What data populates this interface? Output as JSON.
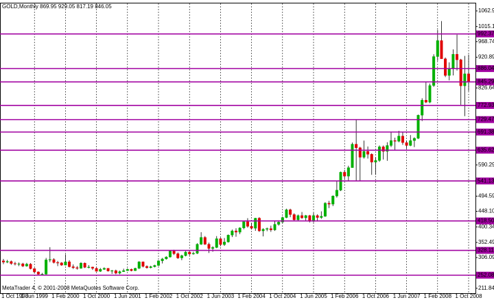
{
  "chart_data": {
    "type": "candlestick",
    "title": "GOLD,Monthly 869.95 929.05 817.19 846.05",
    "footer": "MetaTrader 4, © 2001-2008 MetaQuotes Software Corp.",
    "up_color": "#00b000",
    "down_color": "#e00000",
    "wick_color": "#000000",
    "level_color": "#a000a0",
    "ylim": [
      196.9,
      1086
    ],
    "yticks": [
      1062.99,
      1015.14,
      968.74,
      920.89,
      826.64,
      590.29,
      494.59,
      {
        "value": 448.1,
        "label": "448.10"
      },
      400.34,
      352.49,
      306.09,
      211.84
    ],
    "levels": [
      992.37,
      886.04,
      845.29,
      772.93,
      729.47,
      691.38,
      635.62,
      541.13,
      {
        "value": 418.5,
        "label": "418.50"
      },
      328.11,
      252.08
    ],
    "categories": [
      "1 Oct 1998",
      null,
      null,
      null,
      null,
      null,
      null,
      null,
      "1 Jun 1999",
      null,
      null,
      null,
      null,
      null,
      null,
      null,
      "1 Feb 2000",
      null,
      null,
      null,
      null,
      null,
      null,
      null,
      "1 Oct 2000",
      null,
      null,
      null,
      null,
      null,
      null,
      null,
      "1 Jun 2001",
      null,
      null,
      null,
      null,
      null,
      null,
      null,
      "1 Feb 2002",
      null,
      null,
      null,
      null,
      null,
      null,
      null,
      "1 Oct 2002",
      null,
      null,
      null,
      null,
      null,
      null,
      null,
      "1 Jun 2003",
      null,
      null,
      null,
      null,
      null,
      null,
      null,
      "1 Feb 2004",
      null,
      null,
      null,
      null,
      null,
      null,
      null,
      "1 Oct 2004",
      null,
      null,
      null,
      null,
      null,
      null,
      null,
      "1 Jun 2005",
      null,
      null,
      null,
      null,
      null,
      null,
      null,
      "1 Feb 2006",
      null,
      null,
      null,
      null,
      null,
      null,
      null,
      "1 Oct 2006",
      null,
      null,
      null,
      null,
      null,
      null,
      null,
      "1 Jun 2007",
      null,
      null,
      null,
      null,
      null,
      null,
      null,
      "1 Feb 2008",
      null,
      null,
      null,
      null,
      null,
      null,
      null,
      "1 Oct 2008"
    ],
    "candles": [
      [
        296,
        302,
        286,
        292
      ],
      [
        292,
        299,
        289,
        294
      ],
      [
        294,
        297,
        284,
        288
      ],
      [
        288,
        293,
        282,
        287
      ],
      [
        287,
        291,
        280,
        287
      ],
      [
        287,
        290,
        277,
        280
      ],
      [
        280,
        290,
        278,
        286
      ],
      [
        286,
        289,
        270,
        272
      ],
      [
        272,
        274,
        257,
        262
      ],
      [
        262,
        264,
        252,
        255
      ],
      [
        255,
        259,
        251,
        255
      ],
      [
        255,
        305,
        254,
        299
      ],
      [
        299,
        338,
        292,
        300
      ],
      [
        300,
        304,
        288,
        291
      ],
      [
        291,
        296,
        280,
        290
      ],
      [
        290,
        292,
        281,
        283
      ],
      [
        283,
        316,
        282,
        293
      ],
      [
        293,
        298,
        276,
        278
      ],
      [
        278,
        285,
        271,
        275
      ],
      [
        275,
        280,
        269,
        273
      ],
      [
        273,
        292,
        272,
        289
      ],
      [
        289,
        291,
        274,
        276
      ],
      [
        276,
        283,
        273,
        277
      ],
      [
        277,
        278,
        268,
        273
      ],
      [
        273,
        275,
        263,
        264
      ],
      [
        264,
        274,
        262,
        270
      ],
      [
        270,
        276,
        268,
        273
      ],
      [
        273,
        274,
        263,
        265
      ],
      [
        265,
        268,
        256,
        266
      ],
      [
        266,
        269,
        255,
        258
      ],
      [
        258,
        266,
        255,
        263
      ],
      [
        263,
        272,
        262,
        266
      ],
      [
        266,
        273,
        265,
        270
      ],
      [
        270,
        272,
        264,
        266
      ],
      [
        266,
        275,
        265,
        273
      ],
      [
        273,
        295,
        271,
        293
      ],
      [
        293,
        294,
        276,
        279
      ],
      [
        279,
        282,
        272,
        275
      ],
      [
        275,
        281,
        273,
        278
      ],
      [
        278,
        284,
        276,
        282
      ],
      [
        282,
        298,
        280,
        296
      ],
      [
        296,
        305,
        288,
        302
      ],
      [
        302,
        310,
        300,
        308
      ],
      [
        308,
        328,
        306,
        326
      ],
      [
        326,
        330,
        314,
        318
      ],
      [
        318,
        322,
        302,
        305
      ],
      [
        305,
        315,
        298,
        312
      ],
      [
        312,
        326,
        310,
        323
      ],
      [
        323,
        326,
        312,
        317
      ],
      [
        317,
        324,
        315,
        319
      ],
      [
        319,
        350,
        317,
        347
      ],
      [
        347,
        384,
        345,
        368
      ],
      [
        368,
        372,
        345,
        347
      ],
      [
        347,
        352,
        320,
        334
      ],
      [
        334,
        341,
        324,
        337
      ],
      [
        337,
        372,
        335,
        364
      ],
      [
        364,
        367,
        341,
        346
      ],
      [
        346,
        366,
        342,
        354
      ],
      [
        354,
        377,
        352,
        375
      ],
      [
        375,
        392,
        369,
        388
      ],
      [
        388,
        396,
        370,
        384
      ],
      [
        384,
        399,
        378,
        397
      ],
      [
        397,
        417,
        393,
        416
      ],
      [
        416,
        427,
        398,
        402
      ],
      [
        402,
        412,
        392,
        396
      ],
      [
        396,
        428,
        388,
        427
      ],
      [
        427,
        430,
        385,
        388
      ],
      [
        388,
        396,
        371,
        393
      ],
      [
        393,
        398,
        387,
        395
      ],
      [
        395,
        404,
        385,
        391
      ],
      [
        391,
        418,
        388,
        408
      ],
      [
        408,
        420,
        404,
        415
      ],
      [
        415,
        432,
        412,
        429
      ],
      [
        429,
        456,
        427,
        453
      ],
      [
        453,
        456,
        430,
        438
      ],
      [
        438,
        442,
        418,
        422
      ],
      [
        422,
        438,
        418,
        435
      ],
      [
        435,
        446,
        425,
        428
      ],
      [
        428,
        437,
        420,
        435
      ],
      [
        435,
        437,
        414,
        417
      ],
      [
        417,
        443,
        414,
        435
      ],
      [
        435,
        439,
        417,
        429
      ],
      [
        429,
        448,
        425,
        433
      ],
      [
        433,
        476,
        431,
        473
      ],
      [
        473,
        480,
        458,
        470
      ],
      [
        470,
        497,
        464,
        495
      ],
      [
        495,
        541,
        490,
        513
      ],
      [
        513,
        570,
        510,
        568
      ],
      [
        568,
        575,
        547,
        556
      ],
      [
        556,
        588,
        540,
        582
      ],
      [
        582,
        659,
        582,
        654
      ],
      [
        654,
        730,
        540,
        643
      ],
      [
        643,
        646,
        542,
        614
      ],
      [
        614,
        665,
        610,
        632
      ],
      [
        632,
        647,
        610,
        623
      ],
      [
        623,
        626,
        560,
        599
      ],
      [
        599,
        613,
        560,
        604
      ],
      [
        604,
        650,
        600,
        646
      ],
      [
        646,
        650,
        607,
        632
      ],
      [
        632,
        660,
        603,
        650
      ],
      [
        650,
        690,
        645,
        665
      ],
      [
        665,
        674,
        636,
        663
      ],
      [
        663,
        695,
        660,
        679
      ],
      [
        679,
        691,
        652,
        659
      ],
      [
        659,
        665,
        640,
        650
      ],
      [
        650,
        682,
        648,
        665
      ],
      [
        665,
        675,
        645,
        672
      ],
      [
        672,
        745,
        670,
        743
      ],
      [
        743,
        795,
        725,
        789
      ],
      [
        789,
        845,
        780,
        783
      ],
      [
        783,
        840,
        780,
        834
      ],
      [
        834,
        930,
        830,
        923
      ],
      [
        923,
        1005,
        910,
        972
      ],
      [
        972,
        1032,
        920,
        916
      ],
      [
        916,
        920,
        860,
        865
      ],
      [
        865,
        905,
        850,
        887
      ],
      [
        887,
        945,
        865,
        930
      ],
      [
        930,
        990,
        880,
        913
      ],
      [
        913,
        916,
        775,
        833
      ],
      [
        833,
        925,
        740,
        870
      ],
      [
        869.95,
        929.05,
        817.19,
        846.05
      ]
    ]
  }
}
